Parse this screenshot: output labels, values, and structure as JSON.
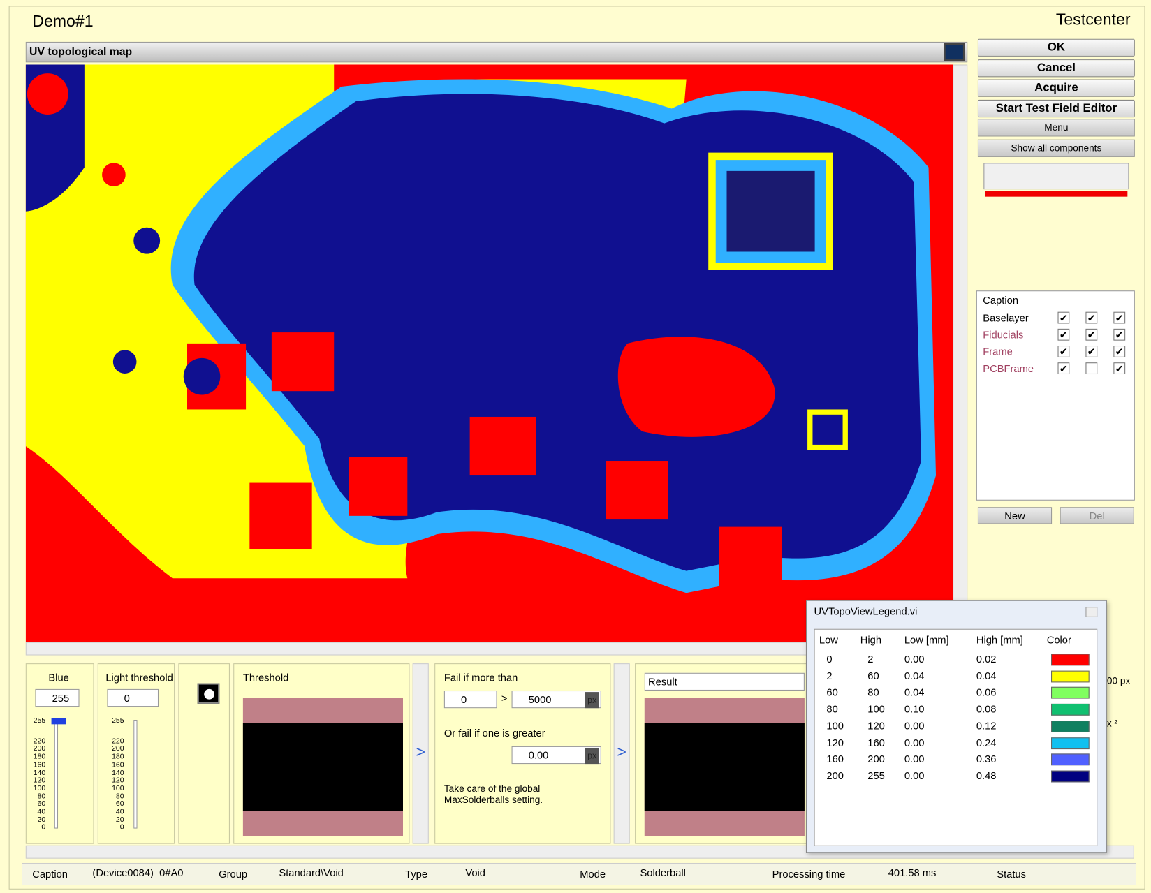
{
  "header": {
    "title": "Demo#1",
    "app": "Testcenter"
  },
  "view": {
    "title": "UV topological map"
  },
  "buttons": [
    "OK",
    "Cancel",
    "Acquire",
    "Start Test Field Editor"
  ],
  "dropdowns": [
    "Menu",
    "Show all components"
  ],
  "layers": {
    "header": "Caption",
    "rows": [
      {
        "name": "Baselayer",
        "checks": [
          true,
          true,
          true
        ]
      },
      {
        "name": "Fiducials",
        "checks": [
          true,
          true,
          true
        ]
      },
      {
        "name": "Frame",
        "checks": [
          true,
          true,
          true
        ]
      },
      {
        "name": "PCBFrame",
        "checks": [
          true,
          false,
          true
        ]
      }
    ]
  },
  "layer_buttons": [
    "New",
    "Del"
  ],
  "controls": {
    "blue": {
      "label": "Blue",
      "value": "255"
    },
    "light": {
      "label": "Light threshold",
      "value": "0"
    },
    "slider_ticks": [
      "255",
      "220",
      "200",
      "180",
      "160",
      "140",
      "120",
      "100",
      "80",
      "60",
      "40",
      "20",
      "0"
    ],
    "threshold": "Threshold",
    "fail": {
      "label": "Fail if more than",
      "count": "0",
      "limit": "5000",
      "unit": "px",
      "or_label": "Or fail if one is greater",
      "size": "0.00",
      "unit2": "px",
      "note": "Take care of the global MaxSolderballs setting."
    },
    "result": "Result",
    "partial": [
      "00 px",
      "x ²"
    ]
  },
  "legend": {
    "title": "UVTopoViewLegend.vi",
    "columns": [
      "Low",
      "High",
      "Low [mm]",
      "High [mm]",
      "Color"
    ],
    "rows": [
      {
        "cells": [
          "0",
          "2",
          "0.00",
          "0.02"
        ],
        "color": "#ff0000"
      },
      {
        "cells": [
          "2",
          "60",
          "0.04",
          "0.04"
        ],
        "color": "#ffff00"
      },
      {
        "cells": [
          "60",
          "80",
          "0.04",
          "0.06"
        ],
        "color": "#80ff60"
      },
      {
        "cells": [
          "80",
          "100",
          "0.10",
          "0.08"
        ],
        "color": "#10c070"
      },
      {
        "cells": [
          "100",
          "120",
          "0.00",
          "0.12"
        ],
        "color": "#108060"
      },
      {
        "cells": [
          "120",
          "160",
          "0.00",
          "0.24"
        ],
        "color": "#10c0f0"
      },
      {
        "cells": [
          "160",
          "200",
          "0.00",
          "0.36"
        ],
        "color": "#5060ff"
      },
      {
        "cells": [
          "200",
          "255",
          "0.00",
          "0.48"
        ],
        "color": "#000080"
      }
    ]
  },
  "status": [
    {
      "label": "Caption",
      "value": "(Device0084)_0#A0"
    },
    {
      "label": "Group",
      "value": "Standard\\Void"
    },
    {
      "label": "Type",
      "value": "Void"
    },
    {
      "label": "Mode",
      "value": "Solderball"
    },
    {
      "label": "Processing time",
      "value": "401.58 ms"
    },
    {
      "label": "Status"
    }
  ]
}
